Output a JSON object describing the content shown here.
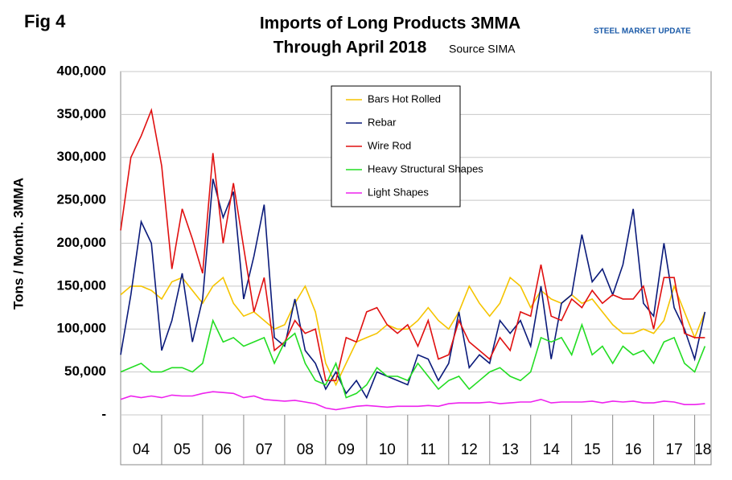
{
  "chart_data": {
    "type": "line",
    "fig_label": "Fig 4",
    "title": "Imports of Long Products 3MMA",
    "subtitle": "Through April 2018",
    "source": "Source SIMA",
    "logo": "STEEL MARKET UPDATE",
    "y_label": "Tons / Month. 3MMA",
    "x": [
      2004,
      2004.25,
      2004.5,
      2004.75,
      2005,
      2005.25,
      2005.5,
      2005.75,
      2006,
      2006.25,
      2006.5,
      2006.75,
      2007,
      2007.25,
      2007.5,
      2007.75,
      2008,
      2008.25,
      2008.5,
      2008.75,
      2009,
      2009.25,
      2009.5,
      2009.75,
      2010,
      2010.25,
      2010.5,
      2010.75,
      2011,
      2011.25,
      2011.5,
      2011.75,
      2012,
      2012.25,
      2012.5,
      2012.75,
      2013,
      2013.25,
      2013.5,
      2013.75,
      2014,
      2014.25,
      2014.5,
      2014.75,
      2015,
      2015.25,
      2015.5,
      2015.75,
      2016,
      2016.25,
      2016.5,
      2016.75,
      2017,
      2017.25,
      2017.5,
      2017.75,
      2018,
      2018.25
    ],
    "series": [
      {
        "name": "Bars Hot Rolled",
        "color": "#f5c400",
        "values": [
          140000,
          150000,
          150000,
          145000,
          135000,
          155000,
          160000,
          145000,
          130000,
          150000,
          160000,
          130000,
          115000,
          120000,
          110000,
          100000,
          105000,
          130000,
          150000,
          120000,
          60000,
          35000,
          60000,
          85000,
          90000,
          95000,
          105000,
          100000,
          100000,
          110000,
          125000,
          110000,
          100000,
          120000,
          150000,
          130000,
          115000,
          130000,
          160000,
          150000,
          125000,
          145000,
          135000,
          130000,
          140000,
          130000,
          135000,
          120000,
          105000,
          95000,
          95000,
          100000,
          95000,
          110000,
          150000,
          120000,
          90000,
          120000
        ]
      },
      {
        "name": "Rebar",
        "color": "#0a1a7a",
        "values": [
          70000,
          140000,
          225000,
          200000,
          75000,
          110000,
          165000,
          85000,
          135000,
          275000,
          230000,
          260000,
          135000,
          185000,
          245000,
          90000,
          80000,
          135000,
          75000,
          60000,
          30000,
          50000,
          25000,
          40000,
          20000,
          50000,
          45000,
          40000,
          35000,
          70000,
          65000,
          40000,
          60000,
          120000,
          55000,
          70000,
          60000,
          110000,
          95000,
          110000,
          80000,
          150000,
          65000,
          130000,
          140000,
          210000,
          155000,
          170000,
          140000,
          175000,
          240000,
          130000,
          115000,
          200000,
          125000,
          100000,
          65000,
          120000
        ]
      },
      {
        "name": "Wire Rod",
        "color": "#e01010",
        "values": [
          215000,
          300000,
          325000,
          355000,
          290000,
          170000,
          240000,
          205000,
          165000,
          305000,
          200000,
          270000,
          195000,
          120000,
          160000,
          75000,
          85000,
          110000,
          95000,
          100000,
          40000,
          40000,
          90000,
          85000,
          120000,
          125000,
          105000,
          95000,
          105000,
          80000,
          110000,
          65000,
          70000,
          110000,
          85000,
          75000,
          65000,
          90000,
          75000,
          120000,
          115000,
          175000,
          115000,
          110000,
          135000,
          125000,
          145000,
          130000,
          140000,
          135000,
          135000,
          150000,
          100000,
          160000,
          160000,
          95000,
          90000,
          90000
        ]
      },
      {
        "name": "Heavy Structural Shapes",
        "color": "#22dd22",
        "values": [
          50000,
          55000,
          60000,
          50000,
          50000,
          55000,
          55000,
          50000,
          60000,
          110000,
          85000,
          90000,
          80000,
          85000,
          90000,
          60000,
          85000,
          95000,
          60000,
          40000,
          35000,
          60000,
          20000,
          25000,
          35000,
          55000,
          45000,
          45000,
          40000,
          60000,
          45000,
          30000,
          40000,
          45000,
          30000,
          40000,
          50000,
          55000,
          45000,
          40000,
          50000,
          90000,
          85000,
          90000,
          70000,
          105000,
          70000,
          80000,
          60000,
          80000,
          70000,
          75000,
          60000,
          85000,
          90000,
          60000,
          50000,
          80000
        ]
      },
      {
        "name": "Light Shapes",
        "color": "#ee22ee",
        "values": [
          18000,
          22000,
          20000,
          22000,
          20000,
          23000,
          22000,
          22000,
          25000,
          27000,
          26000,
          25000,
          20000,
          22000,
          18000,
          17000,
          16000,
          17000,
          15000,
          13000,
          8000,
          6000,
          8000,
          10000,
          11000,
          10000,
          9000,
          10000,
          10000,
          10000,
          11000,
          10000,
          13000,
          14000,
          14000,
          14000,
          15000,
          13000,
          14000,
          15000,
          15000,
          18000,
          14000,
          15000,
          15000,
          15000,
          16000,
          14000,
          16000,
          15000,
          16000,
          14000,
          14000,
          16000,
          15000,
          12000,
          12000,
          13000
        ]
      }
    ],
    "xlim": [
      2004,
      2018.4
    ],
    "xticks": [
      {
        "value": 2004.5,
        "label": "04"
      },
      {
        "value": 2005.5,
        "label": "05"
      },
      {
        "value": 2006.5,
        "label": "06"
      },
      {
        "value": 2007.5,
        "label": "07"
      },
      {
        "value": 2008.5,
        "label": "08"
      },
      {
        "value": 2009.5,
        "label": "09"
      },
      {
        "value": 2010.5,
        "label": "10"
      },
      {
        "value": 2011.5,
        "label": "11"
      },
      {
        "value": 2012.5,
        "label": "12"
      },
      {
        "value": 2013.5,
        "label": "13"
      },
      {
        "value": 2014.5,
        "label": "14"
      },
      {
        "value": 2015.5,
        "label": "15"
      },
      {
        "value": 2016.5,
        "label": "16"
      },
      {
        "value": 2017.5,
        "label": "17"
      },
      {
        "value": 2018.2,
        "label": "18"
      }
    ],
    "ylim": [
      0,
      400000
    ],
    "yticks": [
      {
        "value": 0,
        "label": "-"
      },
      {
        "value": 50000,
        "label": "50,000"
      },
      {
        "value": 100000,
        "label": "100,000"
      },
      {
        "value": 150000,
        "label": "150,000"
      },
      {
        "value": 200000,
        "label": "200,000"
      },
      {
        "value": 250000,
        "label": "250,000"
      },
      {
        "value": 300000,
        "label": "300,000"
      },
      {
        "value": 350000,
        "label": "350,000"
      },
      {
        "value": 400000,
        "label": "400,000"
      }
    ],
    "grid": true
  }
}
